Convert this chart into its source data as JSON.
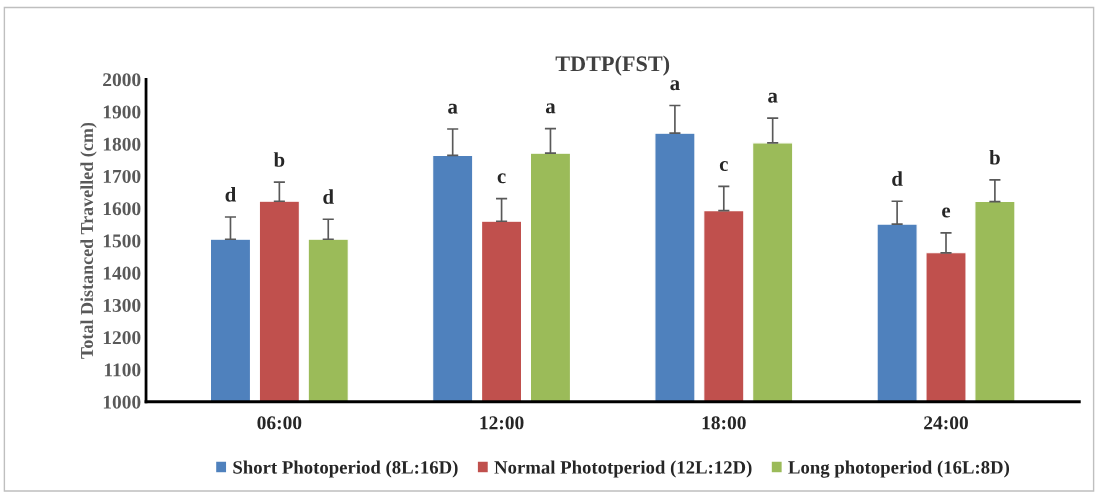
{
  "chart_data": {
    "type": "bar",
    "title": "TDTP(FST)",
    "ylabel": "Total Distanced Travelled (cm)",
    "categories": [
      "06:00",
      "12:00",
      "18:00",
      "24:00"
    ],
    "series": [
      {
        "name": "Short Photoperiod (8L:16D)",
        "color": "#4f81bd",
        "values": [
          1504,
          1764,
          1833,
          1551
        ],
        "errors": [
          [
            1504,
            1573
          ],
          [
            1764,
            1846
          ],
          [
            1833,
            1919
          ],
          [
            1551,
            1622
          ]
        ]
      },
      {
        "name": "Normal Phototperiod (12L:12D)",
        "color": "#c0504d",
        "values": [
          1622,
          1560,
          1593,
          1462
        ],
        "errors": [
          [
            1622,
            1681
          ],
          [
            1560,
            1630
          ],
          [
            1593,
            1668
          ],
          [
            1462,
            1524
          ]
        ]
      },
      {
        "name": "Long photoperiod (16L:8D)",
        "color": "#9bbb59",
        "values": [
          1504,
          1771,
          1803,
          1621
        ],
        "errors": [
          [
            1504,
            1566
          ],
          [
            1771,
            1847
          ],
          [
            1803,
            1880
          ],
          [
            1621,
            1688
          ]
        ]
      }
    ],
    "annotations": [
      "d",
      "b",
      "d",
      "a",
      "c",
      "a",
      "a",
      "c",
      "a",
      "d",
      "e",
      "b"
    ],
    "ylim": [
      1000,
      2000
    ],
    "yticks": [
      1000,
      1100,
      1200,
      1300,
      1400,
      1500,
      1600,
      1700,
      1800,
      1900,
      2000
    ],
    "grid": false,
    "legend": "bottom"
  }
}
